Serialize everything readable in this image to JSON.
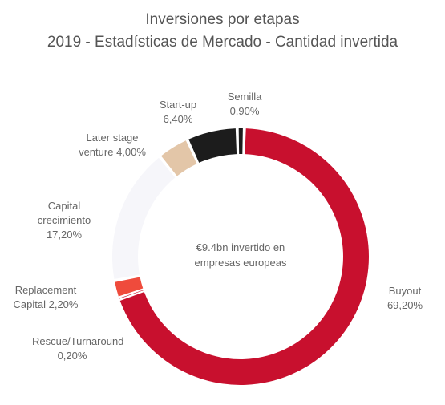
{
  "chart_data": {
    "type": "donut",
    "title": "Inversiones por etapas",
    "subtitle": "2019 - Estadísticas de Mercado - Cantidad invertida",
    "center_text": "€9.4bn invertido en empresas europeas",
    "categories": [
      "Buyout",
      "Rescue/Turnaround",
      "Replacement Capital",
      "Capital crecimiento",
      "Later stage venture",
      "Start-up",
      "Semilla"
    ],
    "values": [
      69.2,
      0.2,
      2.2,
      17.2,
      4.0,
      6.4,
      0.9
    ],
    "value_labels": [
      "69,20%",
      "0,20%",
      "2,20%",
      "17,20%",
      "4,00%",
      "6,40%",
      "0,90%"
    ],
    "colors": [
      "#c8102e",
      "#c8102e",
      "#ef4b3c",
      "#f6f6fa",
      "#e3c6a8",
      "#1c1c1c",
      "#1c1c1c"
    ]
  }
}
